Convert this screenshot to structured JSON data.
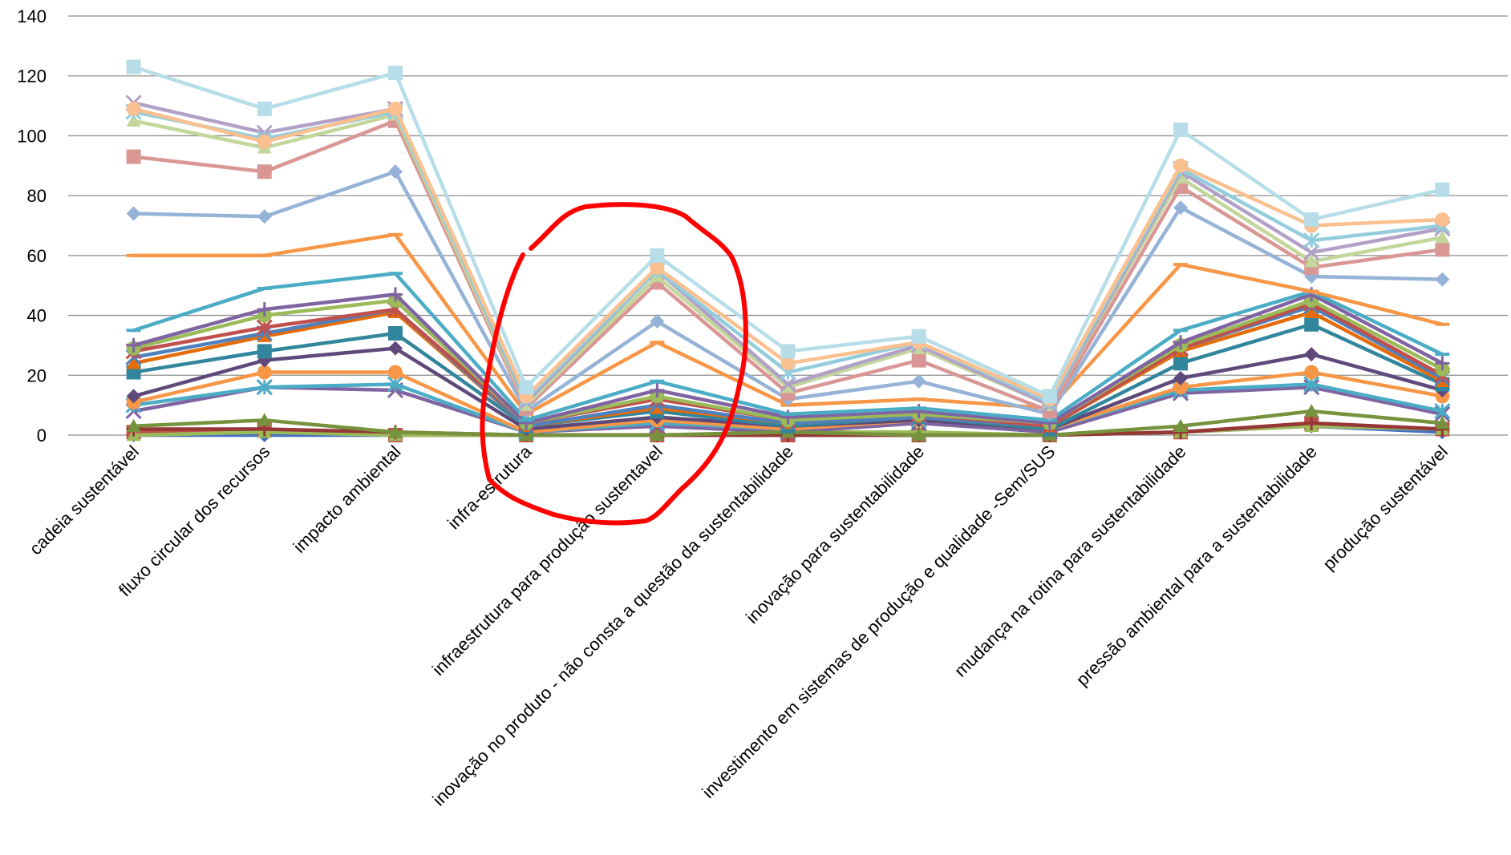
{
  "chart_data": {
    "type": "line",
    "categories": [
      "cadeia sustentável",
      "fluxo circular dos recursos",
      "impacto ambiental",
      "infra-estrutura",
      "infraestrutura para produção sustentavel",
      "inovação no produto - não consta a questão da sustentabilidade",
      "inovação para sustentabilidade",
      "investimento em sistemas de produção e qualidade -Sem/SUS",
      "mudança na rotina para sustentabilidade",
      "pressão ambiental para a sustentabilidade",
      "produção sustentável"
    ],
    "ylim": [
      0,
      140
    ],
    "yticks": [
      0,
      20,
      40,
      60,
      80,
      100,
      120,
      140
    ],
    "grid": true,
    "legend": "none",
    "series": [
      {
        "color": "#4472C4",
        "marker": "diamond",
        "values": [
          0,
          0,
          0,
          0,
          0,
          0,
          0,
          0,
          1,
          3,
          1
        ]
      },
      {
        "color": "#C0504D",
        "marker": "square",
        "values": [
          1,
          2,
          0,
          0,
          0,
          0,
          0,
          0,
          1,
          4,
          2
        ]
      },
      {
        "color": "#9BBB59",
        "marker": "triangle",
        "values": [
          0,
          1,
          0,
          0,
          0,
          1,
          1,
          0,
          1,
          3,
          2
        ]
      },
      {
        "color": "#8064A2",
        "marker": "x",
        "values": [
          8,
          16,
          15,
          1,
          3,
          1,
          4,
          1,
          14,
          16,
          7
        ]
      },
      {
        "color": "#4BACC6",
        "marker": "star",
        "values": [
          10,
          16,
          17,
          1,
          4,
          2,
          5,
          2,
          15,
          17,
          8
        ]
      },
      {
        "color": "#F79646",
        "marker": "circle",
        "values": [
          11,
          21,
          21,
          1,
          5,
          2,
          5,
          2,
          16,
          21,
          13
        ]
      },
      {
        "color": "#953735",
        "marker": "plus",
        "values": [
          2,
          2,
          1,
          0,
          0,
          0,
          0,
          0,
          1,
          4,
          2
        ]
      },
      {
        "color": "#76923C",
        "marker": "triangle",
        "values": [
          3,
          5,
          1,
          0,
          0,
          1,
          0,
          0,
          3,
          8,
          4
        ]
      },
      {
        "color": "#5F497A",
        "marker": "diamond",
        "values": [
          13,
          25,
          29,
          2,
          6,
          3,
          5,
          2,
          19,
          27,
          15
        ]
      },
      {
        "color": "#31859C",
        "marker": "square",
        "values": [
          21,
          28,
          34,
          3,
          8,
          3,
          6,
          2,
          24,
          37,
          17
        ]
      },
      {
        "color": "#E46C0A",
        "marker": "triangle",
        "values": [
          24,
          33,
          41,
          3,
          9,
          4,
          6,
          3,
          28,
          41,
          18
        ]
      },
      {
        "color": "#4F81BD",
        "marker": "x",
        "values": [
          26,
          34,
          42,
          3,
          10,
          4,
          6,
          3,
          29,
          43,
          19
        ]
      },
      {
        "color": "#C0504D",
        "marker": "star",
        "values": [
          28,
          36,
          42,
          4,
          12,
          5,
          7,
          3,
          29,
          44,
          20
        ]
      },
      {
        "color": "#9BBB59",
        "marker": "circle",
        "values": [
          29,
          40,
          45,
          4,
          13,
          5,
          7,
          4,
          30,
          45,
          22
        ]
      },
      {
        "color": "#8064A2",
        "marker": "plus",
        "values": [
          30,
          42,
          47,
          4,
          15,
          6,
          8,
          4,
          31,
          47,
          24
        ]
      },
      {
        "color": "#4BACC6",
        "marker": "dash",
        "values": [
          35,
          49,
          54,
          5,
          18,
          7,
          9,
          5,
          35,
          48,
          27
        ]
      },
      {
        "color": "#F79646",
        "marker": "dash",
        "values": [
          60,
          60,
          67,
          7,
          31,
          10,
          12,
          9,
          57,
          48,
          37
        ]
      },
      {
        "color": "#95B3D7",
        "marker": "diamond",
        "values": [
          74,
          73,
          88,
          8,
          38,
          12,
          18,
          7,
          76,
          53,
          52
        ]
      },
      {
        "color": "#D99694",
        "marker": "square",
        "values": [
          93,
          88,
          105,
          9,
          51,
          14,
          25,
          8,
          83,
          56,
          62
        ]
      },
      {
        "color": "#C3D69B",
        "marker": "triangle",
        "values": [
          105,
          96,
          107,
          10,
          53,
          16,
          29,
          10,
          86,
          58,
          66
        ]
      },
      {
        "color": "#B2A1C7",
        "marker": "x",
        "values": [
          111,
          101,
          109,
          11,
          55,
          17,
          30,
          10,
          88,
          61,
          69
        ]
      },
      {
        "color": "#93CDDD",
        "marker": "star",
        "values": [
          108,
          99,
          108,
          12,
          55,
          21,
          31,
          11,
          89,
          65,
          70
        ]
      },
      {
        "color": "#FAC08F",
        "marker": "circle",
        "values": [
          109,
          98,
          109,
          13,
          56,
          24,
          31,
          12,
          90,
          70,
          72
        ]
      },
      {
        "color": "#B7DEE8",
        "marker": "square",
        "values": [
          123,
          109,
          121,
          16,
          60,
          28,
          33,
          13,
          102,
          72,
          82
        ]
      }
    ],
    "annotations": [
      {
        "type": "hand-drawn-circle",
        "color": "#FF0000",
        "around_category": "infraestrutura para produção sustentavel"
      }
    ]
  }
}
